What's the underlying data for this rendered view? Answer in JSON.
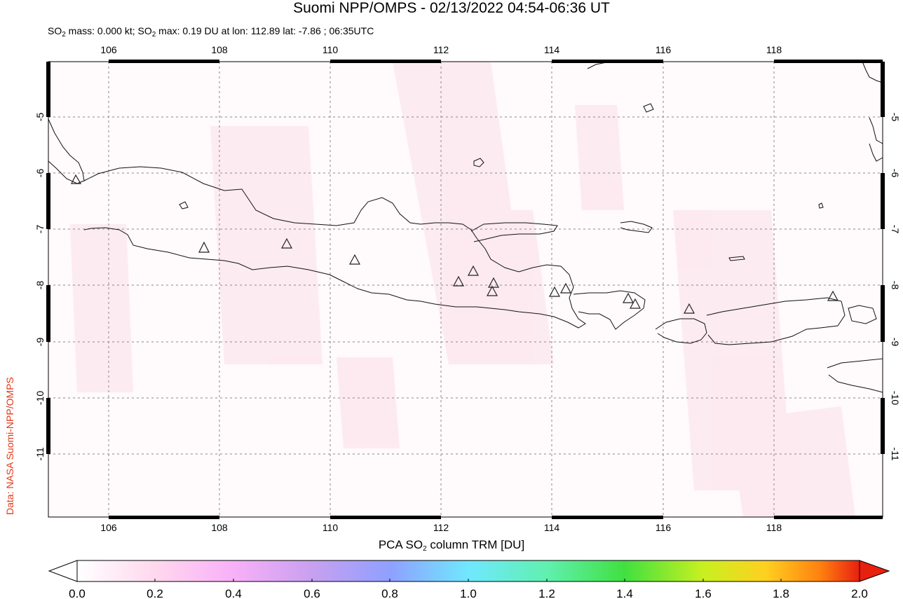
{
  "title": "Suomi NPP/OMPS - 02/13/2022 04:54-06:36 UT",
  "subtitle": {
    "prefix": "SO",
    "sub": "2",
    "mass_text": " mass: 0.000 kt; SO",
    "sub2": "2",
    "rest": " max: 0.19 DU at lon: 112.89 lat: -7.86 ; 06:35UTC"
  },
  "credit": "Data: NASA Suomi-NPP/OMPS",
  "map": {
    "lon_ticks": [
      "106",
      "108",
      "110",
      "112",
      "114",
      "116",
      "118"
    ],
    "lat_ticks": [
      "-5",
      "-6",
      "-7",
      "-8",
      "-9",
      "-10",
      "-11"
    ]
  },
  "colorbar": {
    "label_pre": "PCA SO",
    "label_sub": "2",
    "label_post": " column TRM [DU]",
    "ticks": [
      "0.0",
      "0.2",
      "0.4",
      "0.6",
      "0.8",
      "1.0",
      "1.2",
      "1.4",
      "1.6",
      "1.8",
      "2.0"
    ],
    "colors": [
      "#ffffff",
      "#ffd8ee",
      "#f8b0f8",
      "#c8a0f0",
      "#8fa0ff",
      "#70e8ff",
      "#60f0b0",
      "#40e040",
      "#c8f020",
      "#ffd020",
      "#ff8010",
      "#e82010"
    ]
  },
  "volcano_marker": "triangle-icon"
}
